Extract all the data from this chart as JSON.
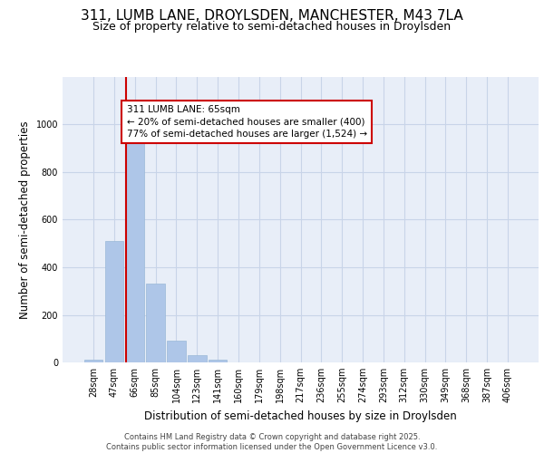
{
  "title_line1": "311, LUMB LANE, DROYLSDEN, MANCHESTER, M43 7LA",
  "title_line2": "Size of property relative to semi-detached houses in Droylsden",
  "xlabel": "Distribution of semi-detached houses by size in Droylsden",
  "ylabel": "Number of semi-detached properties",
  "categories": [
    "28sqm",
    "47sqm",
    "66sqm",
    "85sqm",
    "104sqm",
    "123sqm",
    "141sqm",
    "160sqm",
    "179sqm",
    "198sqm",
    "217sqm",
    "236sqm",
    "255sqm",
    "274sqm",
    "293sqm",
    "312sqm",
    "330sqm",
    "349sqm",
    "368sqm",
    "387sqm",
    "406sqm"
  ],
  "values": [
    10,
    510,
    1000,
    330,
    90,
    30,
    10,
    0,
    0,
    0,
    0,
    0,
    0,
    0,
    0,
    0,
    0,
    0,
    0,
    0,
    0
  ],
  "bar_color": "#aec6e8",
  "bar_edge_color": "#9ab8d8",
  "vline_color": "#cc0000",
  "annotation_text": "311 LUMB LANE: 65sqm\n← 20% of semi-detached houses are smaller (400)\n77% of semi-detached houses are larger (1,524) →",
  "annotation_box_color": "#ffffff",
  "annotation_box_edge_color": "#cc0000",
  "grid_color": "#c8d4e8",
  "background_color": "#e8eef8",
  "ylim": [
    0,
    1200
  ],
  "yticks": [
    0,
    200,
    400,
    600,
    800,
    1000
  ],
  "footer_line1": "Contains HM Land Registry data © Crown copyright and database right 2025.",
  "footer_line2": "Contains public sector information licensed under the Open Government Licence v3.0.",
  "title_fontsize": 11,
  "subtitle_fontsize": 9,
  "tick_fontsize": 7,
  "axis_label_fontsize": 8.5,
  "annotation_fontsize": 7.5
}
